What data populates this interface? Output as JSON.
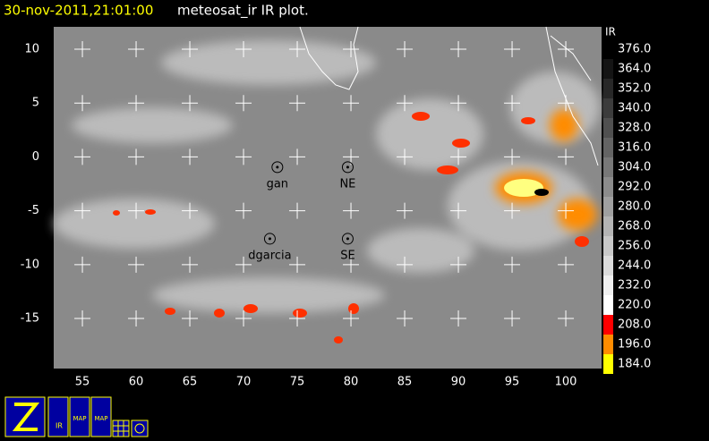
{
  "title": {
    "time": "30-nov-2011,21:01:00",
    "text": "meteosat_ir IR  plot."
  },
  "map": {
    "xlim": [
      52.33,
      103.33
    ],
    "ylim": [
      -19.65,
      12.08
    ],
    "xticks": [
      55,
      60,
      65,
      70,
      75,
      80,
      85,
      90,
      95,
      100
    ],
    "yticks": [
      10,
      5,
      0,
      -5,
      -10,
      -15
    ],
    "stations": [
      {
        "name": "gan",
        "lon": 73.15,
        "lat": -0.95
      },
      {
        "name": "NE",
        "lon": 79.7,
        "lat": -0.95
      },
      {
        "name": "dgarcia",
        "lon": 72.45,
        "lat": -7.6
      },
      {
        "name": "SE",
        "lon": 79.7,
        "lat": -7.6
      }
    ]
  },
  "colorbar": {
    "label": "IR",
    "ticks": [
      {
        "value": 376,
        "label": "376.0"
      },
      {
        "value": 364,
        "label": "364.0"
      },
      {
        "value": 352,
        "label": "352.0"
      },
      {
        "value": 340,
        "label": "340.0"
      },
      {
        "value": 328,
        "label": "328.0"
      },
      {
        "value": 316,
        "label": "316.0"
      },
      {
        "value": 304,
        "label": "304.0"
      },
      {
        "value": 292,
        "label": "292.0"
      },
      {
        "value": 280,
        "label": "280.0"
      },
      {
        "value": 268,
        "label": "268.0"
      },
      {
        "value": 256,
        "label": "256.0"
      },
      {
        "value": 244,
        "label": "244.0"
      },
      {
        "value": 232,
        "label": "232.0"
      },
      {
        "value": 220,
        "label": "220.0"
      },
      {
        "value": 208,
        "label": "208.0"
      },
      {
        "value": 196,
        "label": "196.0"
      },
      {
        "value": 184,
        "label": "184.0"
      }
    ],
    "colors": [
      "#000000",
      "#141414",
      "#282828",
      "#3c3c3c",
      "#505050",
      "#646464",
      "#787878",
      "#8c8c8c",
      "#a0a0a0",
      "#b4b4b4",
      "#c8c8c8",
      "#dcdcdc",
      "#f0f0f0",
      "#ffffff",
      "#ff0000",
      "#ff8c00",
      "#ffff00"
    ]
  },
  "toolbar": [
    "IR",
    "MAP",
    "MAP"
  ]
}
